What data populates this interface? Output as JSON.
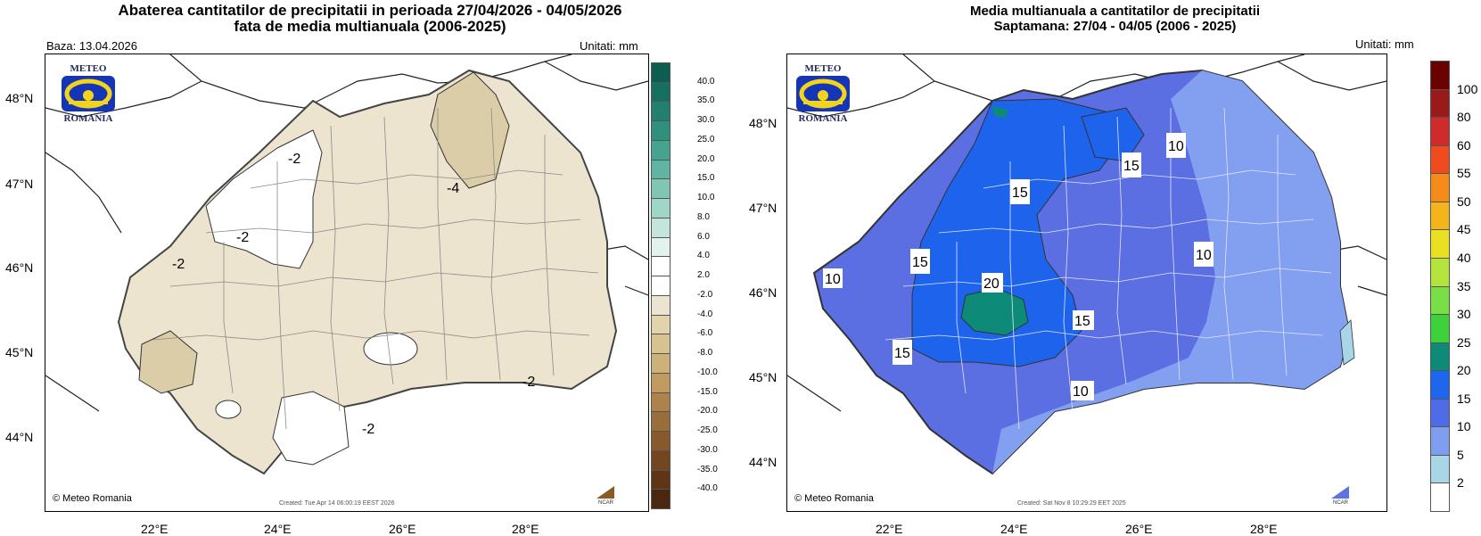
{
  "left": {
    "title_line1": "Abaterea cantitatilor de precipitatii in perioada 27/04/2026 - 04/05/2026",
    "title_line2": "fata de media multianuala (2006-2025)",
    "base": "Baza: 13.04.2026",
    "units": "Unitati: mm",
    "lat_labels": [
      "48°N",
      "47°N",
      "46°N",
      "45°N",
      "44°N"
    ],
    "lon_labels": [
      "22°E",
      "24°E",
      "26°E",
      "28°E"
    ],
    "contour_labels": [
      "-2",
      "-4",
      "-2",
      "-2",
      "-2",
      "-2"
    ],
    "colorbar_labels": [
      "40.0",
      "35.0",
      "30.0",
      "25.0",
      "20.0",
      "15.0",
      "10.0",
      "8.0",
      "6.0",
      "4.0",
      "2.0",
      "-2.0",
      "-4.0",
      "-6.0",
      "-8.0",
      "-10.0",
      "-15.0",
      "-20.0",
      "-25.0",
      "-30.0",
      "-35.0",
      "-40.0"
    ],
    "colorbar_colors": [
      "#0b5e50",
      "#14705f",
      "#22806e",
      "#2f917d",
      "#45a48f",
      "#5fb5a1",
      "#7fc6b3",
      "#a0d6c8",
      "#c3e5dc",
      "#e2f2ed",
      "#ffffff",
      "#ffffff",
      "#ebe4d0",
      "#e1d4ad",
      "#d7c391",
      "#cdb178",
      "#c09a5f",
      "#ad834b",
      "#9a6e3a",
      "#87592b",
      "#72461f",
      "#5e3616",
      "#4a280f"
    ],
    "logo_top": "METEO",
    "logo_bottom": "ROMANIA",
    "copyright": "© Meteo Romania",
    "created": "Created: Tue Apr 14 06:00:19 EEST 2026",
    "ncar": "NCAR"
  },
  "right": {
    "title_line1": "Media multianuala a cantitatilor de precipitatii",
    "title_line2": "Saptamana: 27/04 - 04/05 (2006 - 2025)",
    "units": "Unitati: mm",
    "lat_labels": [
      "48°N",
      "47°N",
      "46°N",
      "45°N",
      "44°N"
    ],
    "lon_labels": [
      "22°E",
      "24°E",
      "26°E",
      "28°E"
    ],
    "contour_labels": [
      "15",
      "15",
      "10",
      "15",
      "10",
      "10",
      "20",
      "15",
      "15",
      "10"
    ],
    "colorbar_labels": [
      "100",
      "80",
      "60",
      "55",
      "50",
      "45",
      "40",
      "35",
      "30",
      "25",
      "20",
      "15",
      "10",
      "5",
      "2"
    ],
    "colorbar_colors": [
      "#6b0000",
      "#9a1a1a",
      "#cf2b2b",
      "#f04a1f",
      "#f58c1a",
      "#f5b51a",
      "#e8e021",
      "#b4e33c",
      "#78e046",
      "#3dd23a",
      "#0e8a78",
      "#1f66ee",
      "#4f6be8",
      "#7f9ef0",
      "#a9d6e6",
      "#ffffff"
    ],
    "logo_top": "METEO",
    "logo_bottom": "ROMANIA",
    "copyright": "© Meteo Romania",
    "created": "Created: Sat Nov  8 10:29:29 EET 2025",
    "ncar": "NCAR"
  }
}
